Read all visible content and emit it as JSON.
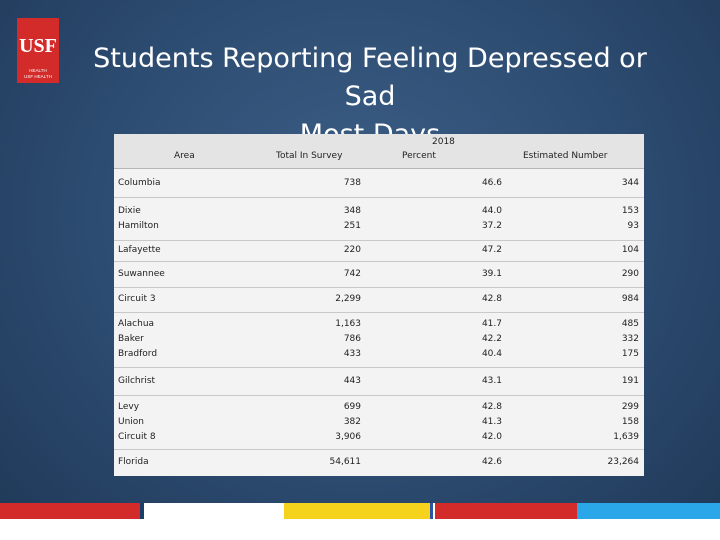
{
  "logo": {
    "mark": "USF",
    "line1": "HEALTH",
    "line2": "USF HEALTH"
  },
  "title": {
    "line1": "Students Reporting Feeling Depressed or Sad",
    "line2": "Most Days"
  },
  "table": {
    "year_header": "2018",
    "headers": {
      "area": "Area",
      "total": "Total In Survey",
      "percent": "Percent",
      "estimated": "Estimated Number"
    },
    "rows": [
      {
        "area": [
          "Columbia"
        ],
        "total": [
          "738"
        ],
        "percent": [
          "46.6"
        ],
        "estimated": [
          "344"
        ]
      },
      {
        "area": [
          "Dixie",
          "Hamilton"
        ],
        "total": [
          "348",
          "251"
        ],
        "percent": [
          "44.0",
          "37.2"
        ],
        "estimated": [
          "153",
          "93"
        ]
      },
      {
        "area": [
          "Lafayette"
        ],
        "total": [
          "220"
        ],
        "percent": [
          "47.2"
        ],
        "estimated": [
          "104"
        ]
      },
      {
        "area": [
          "Suwannee"
        ],
        "total": [
          "742"
        ],
        "percent": [
          "39.1"
        ],
        "estimated": [
          "290"
        ]
      },
      {
        "area": [
          "Circuit 3"
        ],
        "total": [
          "2,299"
        ],
        "percent": [
          "42.8"
        ],
        "estimated": [
          "984"
        ]
      },
      {
        "area": [
          "Alachua",
          "Baker",
          "Bradford"
        ],
        "total": [
          "1,163",
          "786",
          "433"
        ],
        "percent": [
          "41.7",
          "42.2",
          "40.4"
        ],
        "estimated": [
          "485",
          "332",
          "175"
        ]
      },
      {
        "area": [
          "Gilchrist"
        ],
        "total": [
          "443"
        ],
        "percent": [
          "43.1"
        ],
        "estimated": [
          "191"
        ]
      },
      {
        "area": [
          "Levy",
          "Union",
          "Circuit 8"
        ],
        "total": [
          "699",
          "382",
          "3,906"
        ],
        "percent": [
          "42.8",
          "41.3",
          "42.0"
        ],
        "estimated": [
          "299",
          "158",
          "1,639"
        ]
      },
      {
        "area": [
          "Florida"
        ],
        "total": [
          "54,611"
        ],
        "percent": [
          "42.6"
        ],
        "estimated": [
          "23,264"
        ]
      }
    ]
  },
  "colors": {
    "logo_red": "#d32a2a",
    "bar": [
      "#d32a2a",
      "#1b3d6a",
      "#ffffff",
      "#f5d21c",
      "#2b56a8",
      "#ffffff",
      "#d32a2a",
      "#2aa7e8"
    ]
  }
}
